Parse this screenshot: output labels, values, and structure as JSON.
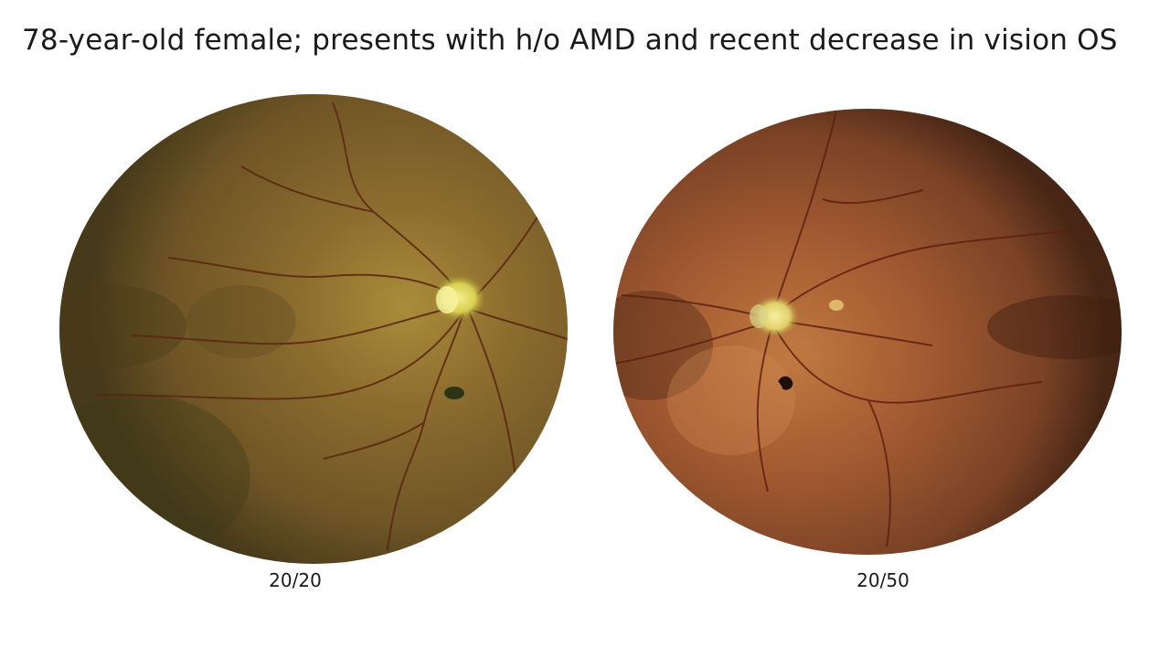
{
  "slide": {
    "title": "78-year-old female; presents with h/o AMD and recent decrease in vision OS"
  },
  "images": [
    {
      "description": "Widefield fundus photograph, right eye",
      "caption": "20/20",
      "palette": {
        "center": "#9a7a32",
        "mid": "#7f5f2a",
        "edge": "#4a3d1c",
        "disc": "#e8de6a",
        "vessel": "#5a2612"
      }
    },
    {
      "description": "Widefield fundus photograph, left eye",
      "caption": "20/50",
      "palette": {
        "center": "#b06838",
        "mid": "#8c4c28",
        "edge": "#4e2a16",
        "disc": "#ece080",
        "vessel": "#5a1f10"
      }
    }
  ]
}
